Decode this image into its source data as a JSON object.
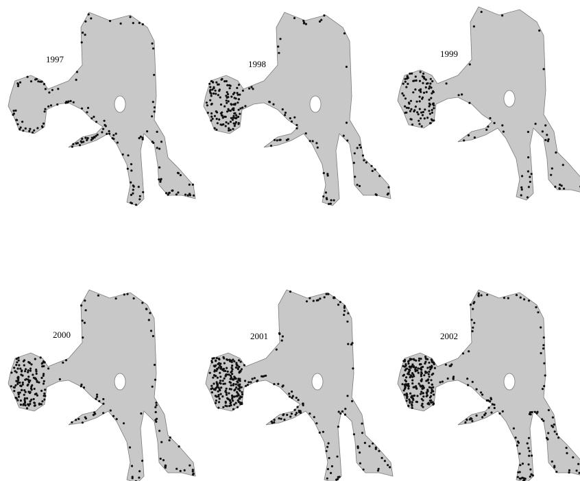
{
  "panels": [
    {
      "label": "1997"
    },
    {
      "label": "1998"
    },
    {
      "label": "1999"
    },
    {
      "label": "2000"
    },
    {
      "label": "2001"
    },
    {
      "label": "2002"
    }
  ]
}
